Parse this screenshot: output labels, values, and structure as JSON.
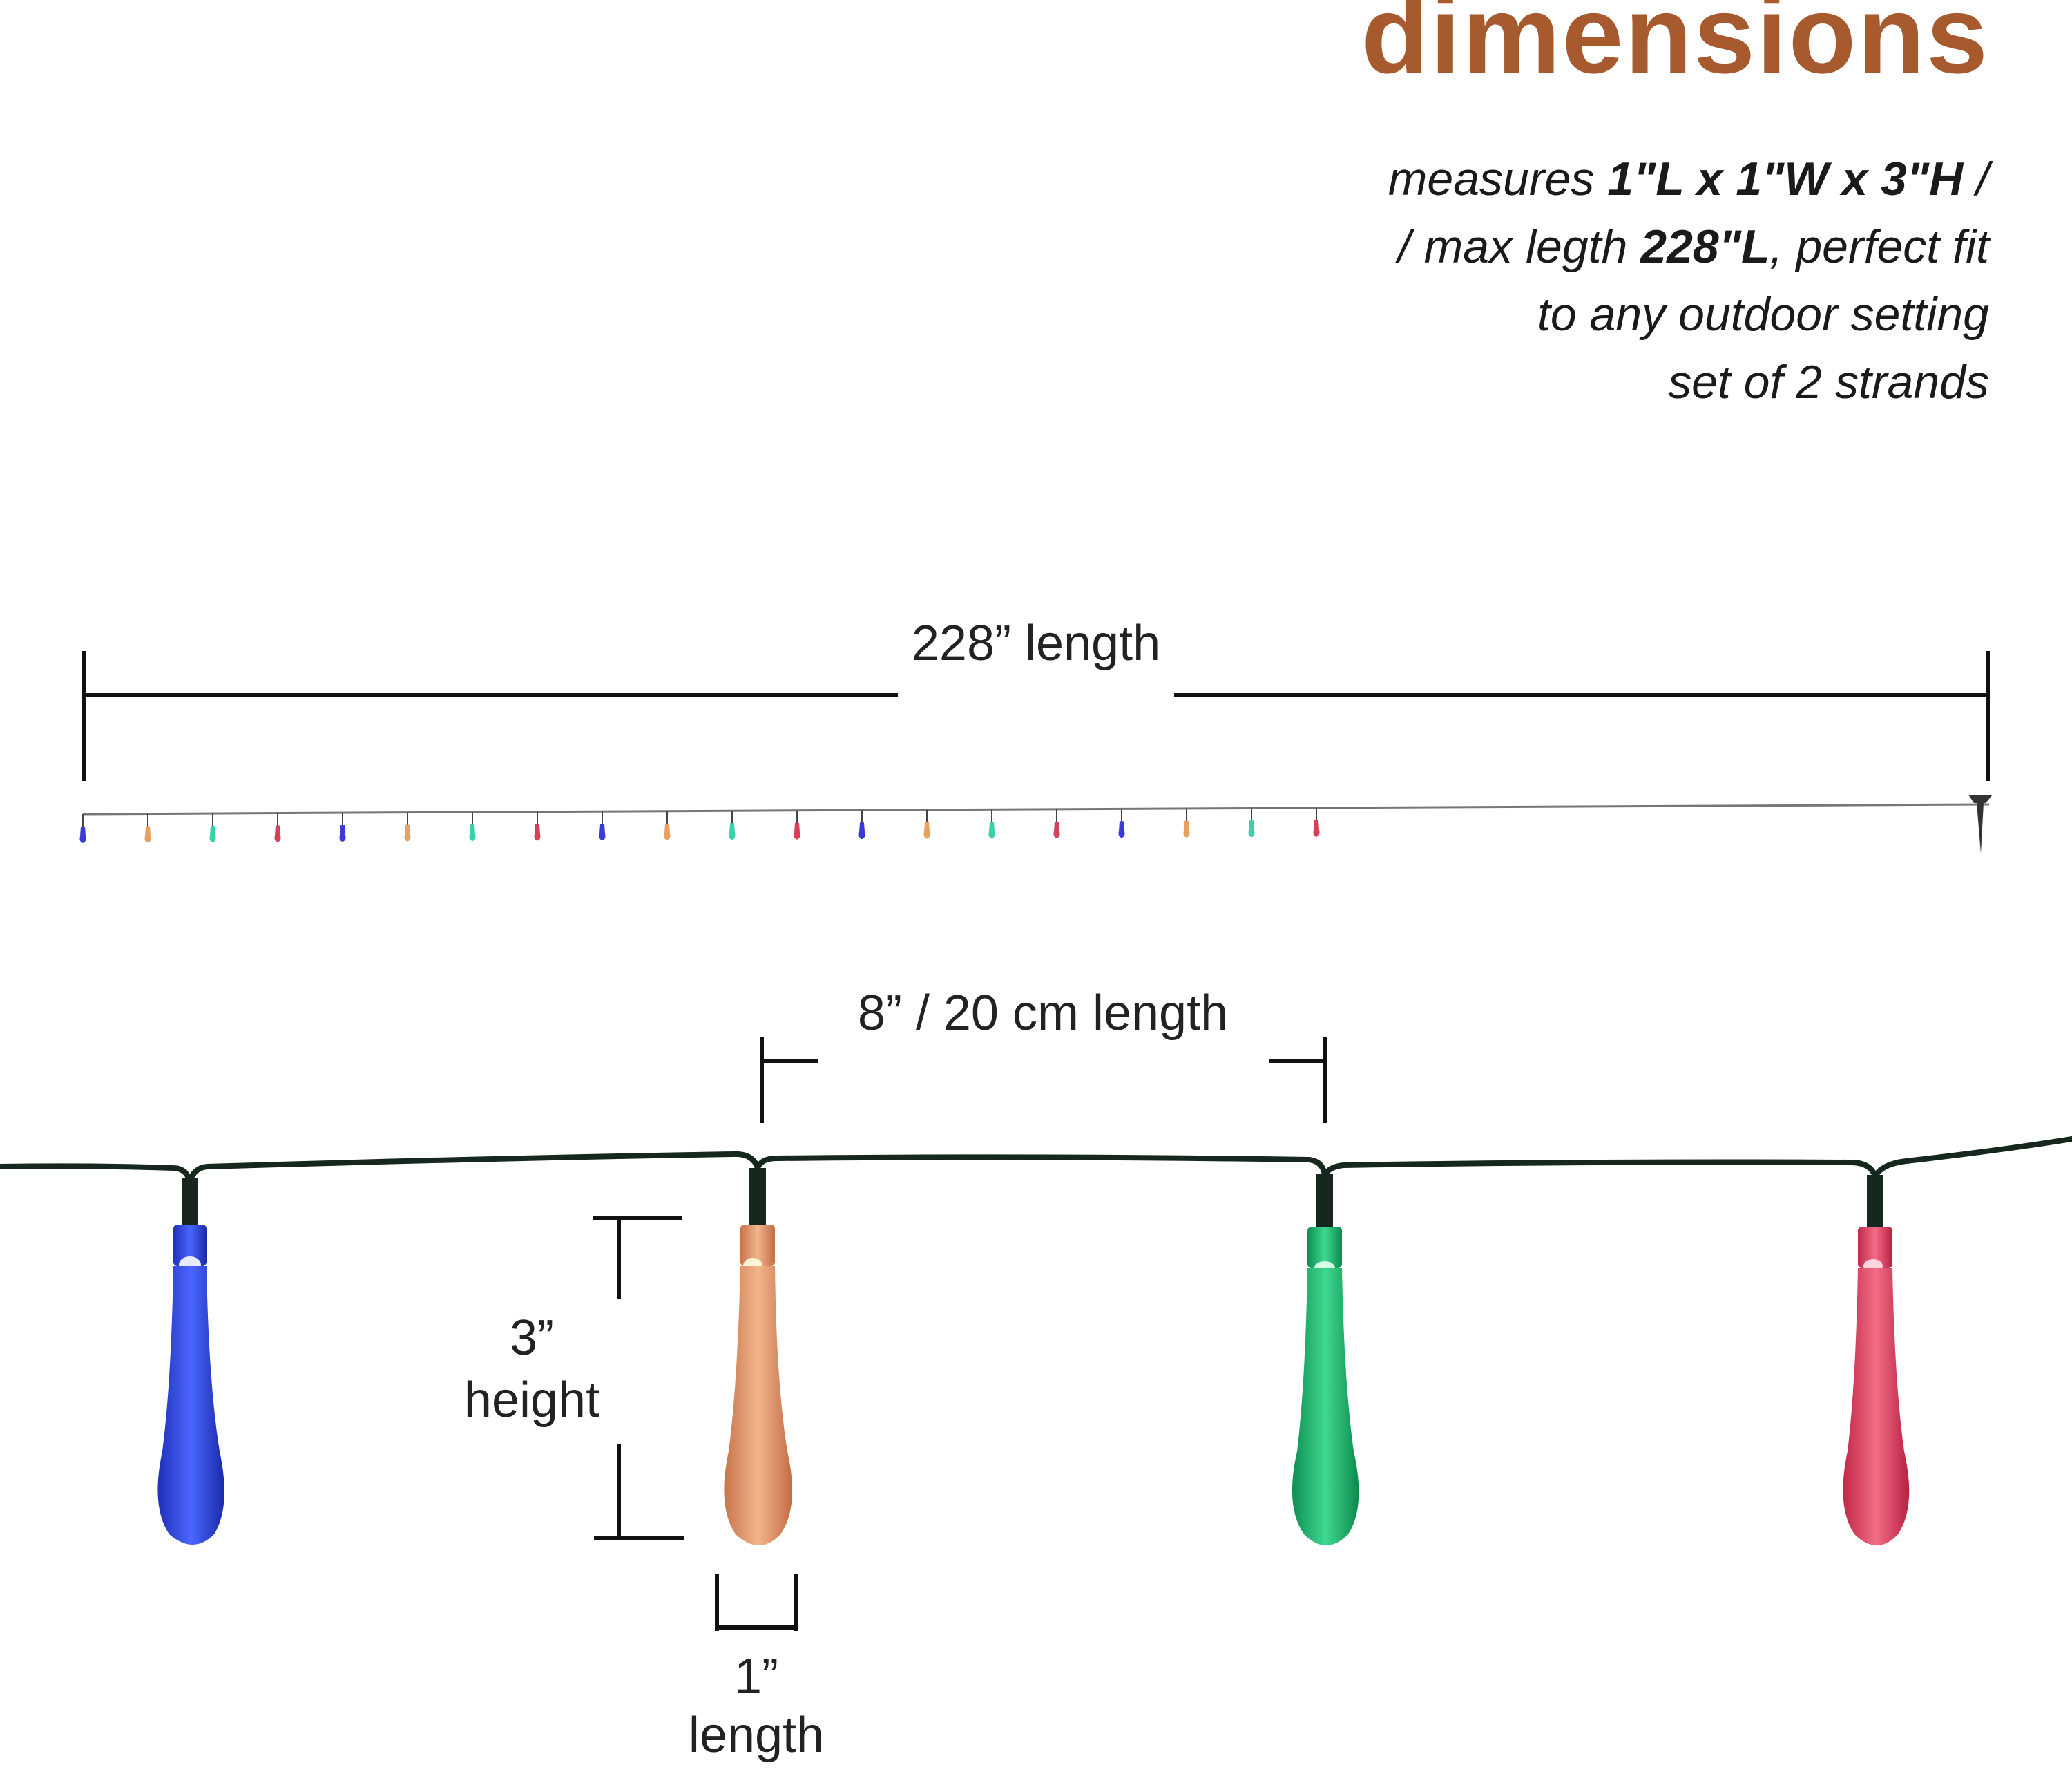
{
  "title": "dimensions",
  "description": {
    "line1_prefix": "measures ",
    "line1_dims": "1\"L x 1\"W x 3\"H",
    "line1_suffix": " /",
    "line2_prefix": "/ max legth ",
    "line2_bold": "228\"L",
    "line2_suffix": ", perfect fit",
    "line3": "to any outdoor setting",
    "line4": "set of 2 strands"
  },
  "labels": {
    "total_length": "228” length",
    "spacing": "8” / 20 cm length",
    "height_value": "3”",
    "height_word": "height",
    "width_value": "1”",
    "width_word": "length"
  },
  "colors": {
    "title": "#a65a2e",
    "bulb_blue": "#2f48e0",
    "bulb_orange": "#e39a6a",
    "bulb_green": "#1fb56e",
    "bulb_red": "#e0425e",
    "wire": "#16281d",
    "dim_line": "#111111"
  },
  "mini_strand_colors": [
    "blue",
    "orange",
    "teal",
    "red",
    "blue",
    "orange",
    "teal",
    "red",
    "blue",
    "orange",
    "teal",
    "red",
    "blue",
    "orange",
    "teal",
    "red",
    "blue",
    "orange",
    "teal",
    "red"
  ],
  "bulbs": [
    "blue",
    "orange",
    "green",
    "red"
  ]
}
